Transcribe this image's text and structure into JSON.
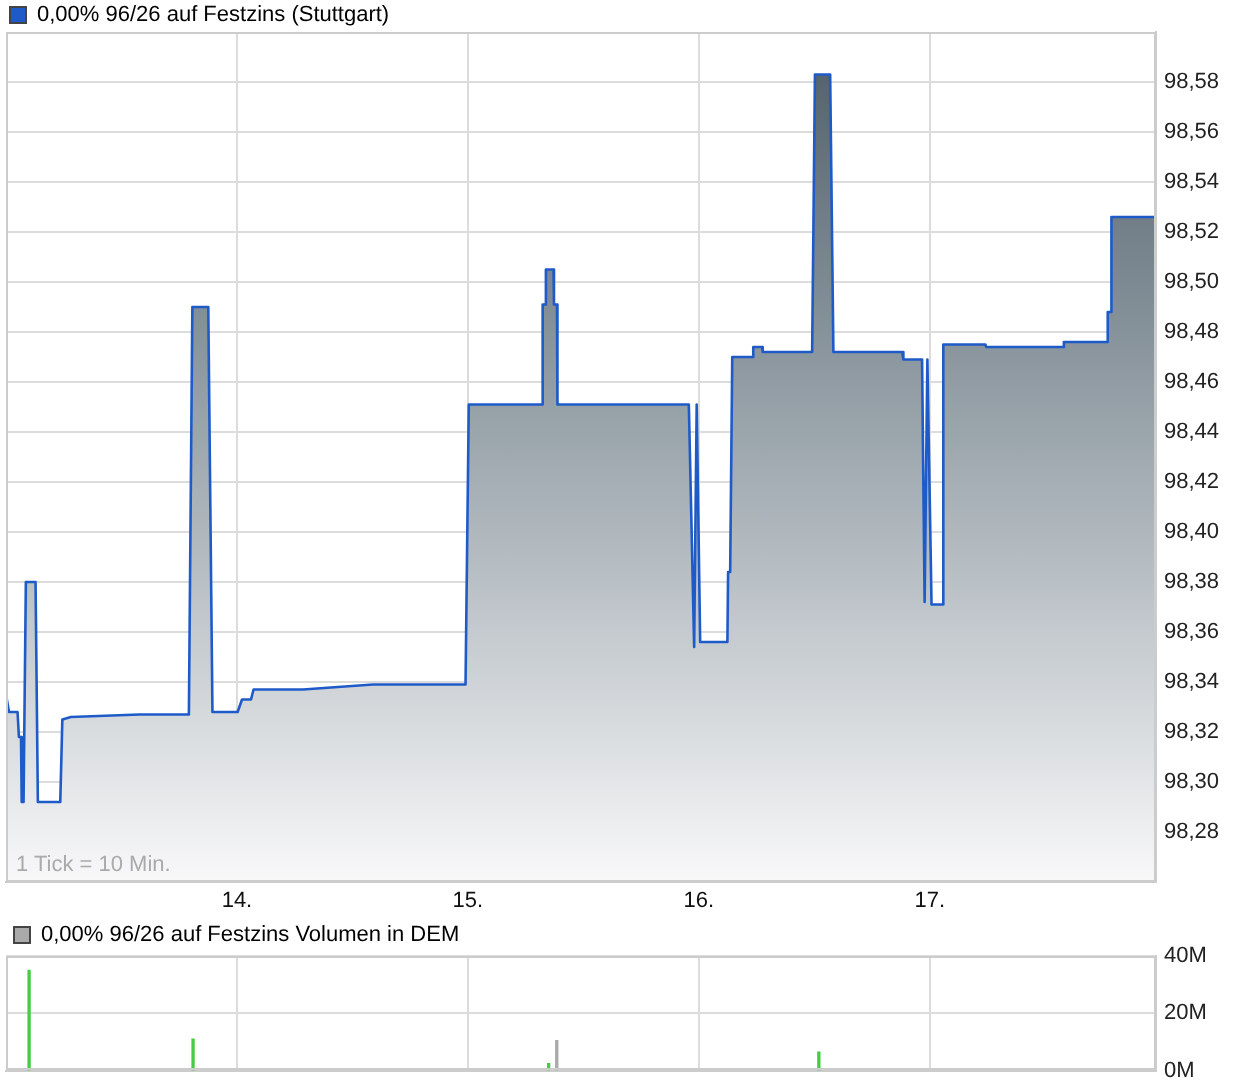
{
  "chart_data": [
    {
      "type": "area",
      "series": [
        {
          "name": "0,00% 96/26 auf Festzins (Stuttgart)",
          "color": "#1f5bc8",
          "x": [
            13.0,
            13.013,
            13.05,
            13.056,
            13.065,
            13.068,
            13.076,
            13.086,
            13.128,
            13.138,
            13.235,
            13.244,
            13.281,
            13.578,
            13.792,
            13.807,
            13.876,
            13.894,
            14.003,
            14.022,
            14.061,
            14.072,
            14.286,
            14.589,
            14.99,
            15.004,
            15.322,
            15.324,
            15.336,
            15.338,
            15.371,
            15.373,
            15.386,
            15.388,
            15.957,
            15.98,
            15.991,
            16.006,
            16.124,
            16.127,
            16.136,
            16.145,
            16.231,
            16.236,
            16.274,
            16.277,
            16.491,
            16.503,
            16.569,
            16.583,
            16.881,
            16.886,
            16.967,
            16.978,
            16.99,
            17.008,
            17.054,
            17.059,
            17.241,
            17.245,
            17.578,
            17.581,
            17.769,
            17.771,
            17.781,
            17.787,
            17.977
          ],
          "values": [
            98.335,
            98.328,
            98.328,
            98.318,
            98.318,
            98.292,
            98.292,
            98.38,
            98.38,
            98.292,
            98.292,
            98.325,
            98.326,
            98.327,
            98.327,
            98.49,
            98.49,
            98.328,
            98.328,
            98.333,
            98.333,
            98.337,
            98.337,
            98.339,
            98.339,
            98.451,
            98.451,
            98.491,
            98.491,
            98.505,
            98.505,
            98.491,
            98.491,
            98.451,
            98.451,
            98.354,
            98.451,
            98.356,
            98.356,
            98.384,
            98.384,
            98.47,
            98.47,
            98.474,
            98.474,
            98.472,
            98.472,
            98.583,
            98.583,
            98.472,
            98.472,
            98.469,
            98.469,
            98.372,
            98.469,
            98.371,
            98.371,
            98.475,
            98.475,
            98.474,
            98.474,
            98.476,
            98.476,
            98.488,
            98.488,
            98.526,
            98.526
          ]
        }
      ],
      "xlim": [
        13,
        17.98
      ],
      "xticks": [
        {
          "value": 14,
          "label": "14."
        },
        {
          "value": 15,
          "label": "15."
        },
        {
          "value": 16,
          "label": "16."
        },
        {
          "value": 17,
          "label": "17."
        }
      ],
      "ylim": [
        98.26,
        98.6
      ],
      "yticks": [
        {
          "value": 98.28,
          "label": "98,28"
        },
        {
          "value": 98.3,
          "label": "98,30"
        },
        {
          "value": 98.32,
          "label": "98,32"
        },
        {
          "value": 98.34,
          "label": "98,34"
        },
        {
          "value": 98.36,
          "label": "98,36"
        },
        {
          "value": 98.38,
          "label": "98,38"
        },
        {
          "value": 98.4,
          "label": "98,40"
        },
        {
          "value": 98.42,
          "label": "98,42"
        },
        {
          "value": 98.44,
          "label": "98,44"
        },
        {
          "value": 98.46,
          "label": "98,46"
        },
        {
          "value": 98.48,
          "label": "98,48"
        },
        {
          "value": 98.5,
          "label": "98,50"
        },
        {
          "value": 98.52,
          "label": "98,52"
        },
        {
          "value": 98.54,
          "label": "98,54"
        },
        {
          "value": 98.56,
          "label": "98,56"
        },
        {
          "value": 98.58,
          "label": "98,58"
        }
      ],
      "grid": true,
      "legend": "top left",
      "annotations": [
        "1 Tick = 10 Min."
      ]
    },
    {
      "type": "bar",
      "series": [
        {
          "name": "0,00% 96/26 auf Festzins Volumen in DEM",
          "color": "#aaaaaa",
          "colors": [
            "#44cc44",
            "#44cc44",
            "#44cc44",
            "#aaaaaa",
            "#44cc44"
          ],
          "x": [
            13.1,
            13.81,
            15.35,
            15.385,
            16.52
          ],
          "values": [
            35000000,
            11000000,
            2500000,
            10500000,
            6500000
          ]
        }
      ],
      "xlim": [
        13,
        17.98
      ],
      "xticks": [
        {
          "value": 14,
          "label": null
        },
        {
          "value": 15,
          "label": null
        },
        {
          "value": 16,
          "label": null
        },
        {
          "value": 17,
          "label": null
        }
      ],
      "ylim": [
        0,
        40000000
      ],
      "yticks": [
        {
          "value": 0,
          "label": "0M"
        },
        {
          "value": 20000000,
          "label": "20M"
        },
        {
          "value": 40000000,
          "label": "40M"
        }
      ],
      "grid": true,
      "legend": "top left",
      "tick_labels": "y"
    }
  ]
}
